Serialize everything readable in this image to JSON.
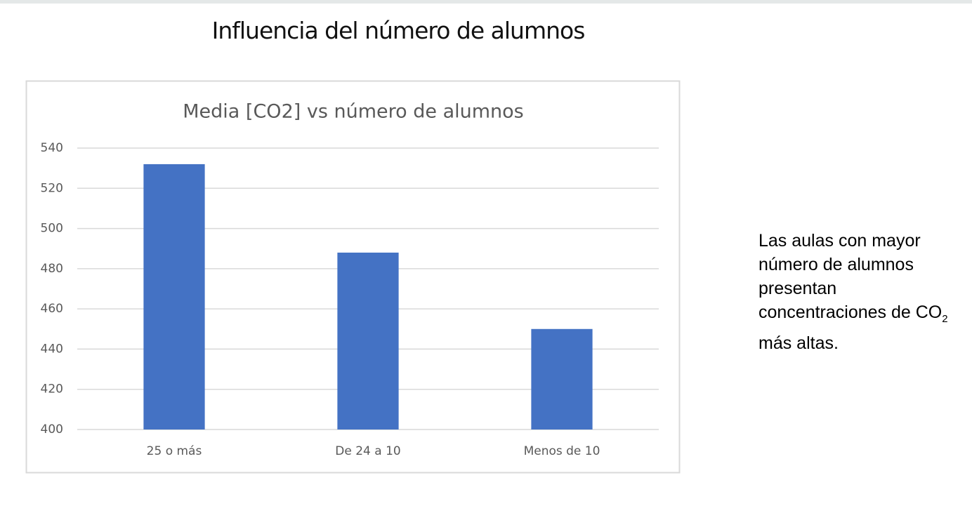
{
  "slide_title": "Influencia del número de alumnos",
  "note": [
    "Las aulas con mayor número de alumnos presentan concentraciones de CO",
    "2",
    "más altas."
  ],
  "chart_data": {
    "type": "bar",
    "title": "Media [CO2] vs número de alumnos",
    "categories": [
      "25 o más",
      "De 24 a 10",
      "Menos de 10"
    ],
    "values": [
      532,
      488,
      450
    ],
    "color": "#4472c4",
    "ylim": [
      400,
      540
    ],
    "yticks": [
      400,
      420,
      440,
      460,
      480,
      500,
      520,
      540
    ],
    "grid": true
  }
}
